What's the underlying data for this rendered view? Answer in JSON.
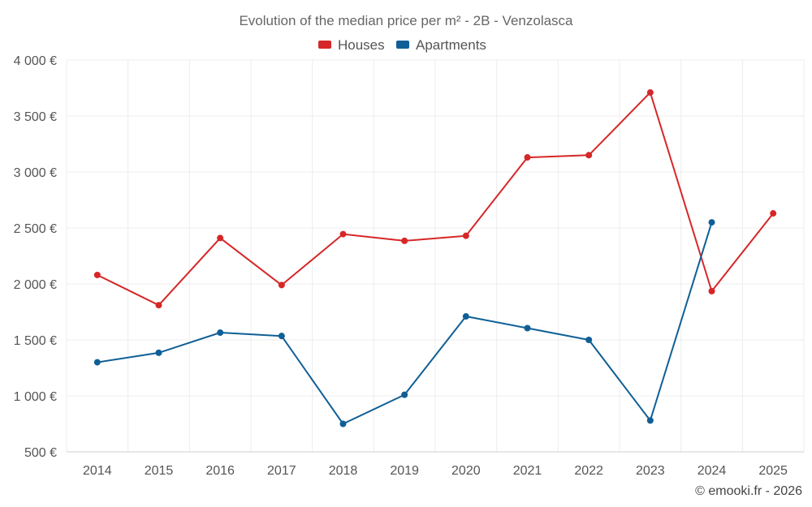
{
  "chart_data": {
    "type": "line",
    "title": "Evolution of the median price per m² - 2B - Venzolasca",
    "categories": [
      "2014",
      "2015",
      "2016",
      "2017",
      "2018",
      "2019",
      "2020",
      "2021",
      "2022",
      "2023",
      "2024",
      "2025"
    ],
    "series": [
      {
        "name": "Houses",
        "color": "#d62728",
        "values": [
          2080,
          1810,
          2410,
          1990,
          2445,
          2385,
          2430,
          3130,
          3150,
          3710,
          1935,
          2630
        ]
      },
      {
        "name": "Apartments",
        "color": "#0f5f96",
        "values": [
          1300,
          1385,
          1565,
          1535,
          750,
          1010,
          1710,
          1605,
          1500,
          780,
          2550,
          null
        ]
      }
    ],
    "y_ticks": [
      {
        "value": 500,
        "label": "500 €"
      },
      {
        "value": 1000,
        "label": "1 000 €"
      },
      {
        "value": 1500,
        "label": "1 500 €"
      },
      {
        "value": 2000,
        "label": "2 000 €"
      },
      {
        "value": 2500,
        "label": "2 500 €"
      },
      {
        "value": 3000,
        "label": "3 000 €"
      },
      {
        "value": 3500,
        "label": "3 500 €"
      },
      {
        "value": 4000,
        "label": "4 000 €"
      }
    ],
    "ylim": [
      500,
      4000
    ],
    "xlabel": "",
    "ylabel": "",
    "legend_position": "top-center",
    "grid": true,
    "credit": "© emooki.fr - 2026"
  }
}
